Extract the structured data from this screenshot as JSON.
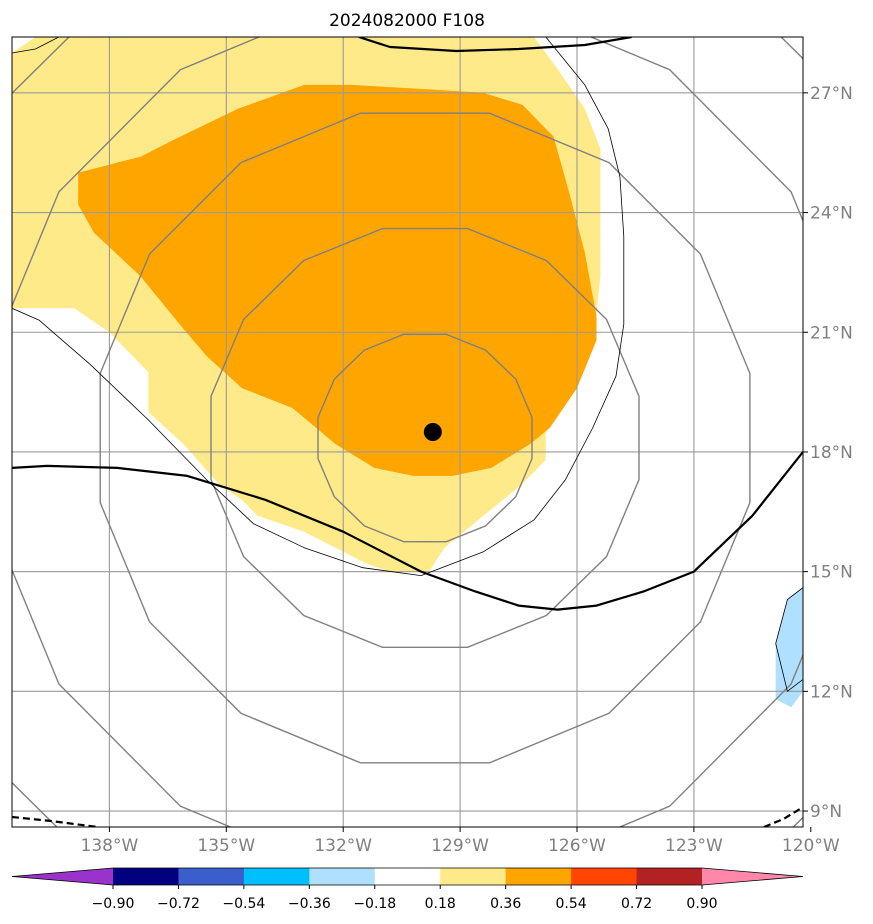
{
  "chart_data": {
    "type": "heatmap",
    "title": "2024082000 F108",
    "map": {
      "lon_range": [
        -140.5,
        -120.2
      ],
      "lat_range": [
        8.6,
        28.4
      ],
      "lon_ticks": [
        -138,
        -135,
        -132,
        -129,
        -126,
        -123,
        -120
      ],
      "lon_tick_labels": [
        "138°W",
        "135°W",
        "132°W",
        "129°W",
        "126°W",
        "123°W",
        "120°W"
      ],
      "lat_ticks": [
        9,
        12,
        15,
        18,
        21,
        24,
        27
      ],
      "lat_tick_labels": [
        "9°N",
        "12°N",
        "15°N",
        "18°N",
        "21°N",
        "24°N",
        "27°N"
      ],
      "grid": true,
      "tick_label_color": "#808080"
    },
    "colorbar": {
      "orientation": "horizontal",
      "location": "bottom",
      "extend": "both",
      "levels": [
        -0.9,
        -0.72,
        -0.54,
        -0.36,
        -0.18,
        0.18,
        0.36,
        0.54,
        0.72,
        0.9
      ],
      "tick_labels": [
        "−0.90",
        "−0.72",
        "−0.54",
        "−0.36",
        "−0.18",
        "0.18",
        "0.36",
        "0.54",
        "0.72",
        "0.90"
      ],
      "colors": [
        "#9933cc",
        "#000080",
        "#3a5fcd",
        "#00bfff",
        "#b0e0ff",
        "#ffffff",
        "#ffea8a",
        "#ffa500",
        "#ff4500",
        "#b22222",
        "#ff88aa"
      ]
    },
    "storm_center": {
      "lon": -129.7,
      "lat": 18.5
    },
    "filled_regions": [
      {
        "level_range": [
          0.18,
          0.36
        ],
        "color": "#ffea8a",
        "polygon": [
          [
            -139.9,
            28.4
          ],
          [
            -127.1,
            28.4
          ],
          [
            -126.5,
            27.6
          ],
          [
            -125.8,
            26.6
          ],
          [
            -125.4,
            25.6
          ],
          [
            -125.4,
            22.4
          ],
          [
            -125.6,
            20.6
          ],
          [
            -126.2,
            19.8
          ],
          [
            -126.8,
            19.0
          ],
          [
            -126.8,
            17.8
          ],
          [
            -127.4,
            17.2
          ],
          [
            -128.4,
            16.4
          ],
          [
            -129.4,
            15.6
          ],
          [
            -129.8,
            15.0
          ],
          [
            -130.8,
            15.0
          ],
          [
            -131.4,
            15.2
          ],
          [
            -132.2,
            15.6
          ],
          [
            -133.0,
            16.0
          ],
          [
            -133.6,
            16.2
          ],
          [
            -134.2,
            16.4
          ],
          [
            -134.6,
            16.8
          ],
          [
            -135.2,
            17.2
          ],
          [
            -136.1,
            18.2
          ],
          [
            -137.0,
            19.0
          ],
          [
            -137.0,
            20.0
          ],
          [
            -138.0,
            21.0
          ],
          [
            -138.9,
            21.6
          ],
          [
            -140.5,
            21.6
          ],
          [
            -140.5,
            28.0
          ]
        ]
      },
      {
        "level_range": [
          0.36,
          0.54
        ],
        "color": "#ffa500",
        "polygon": [
          [
            -137.2,
            25.4
          ],
          [
            -136.4,
            25.8
          ],
          [
            -134.7,
            26.6
          ],
          [
            -133.0,
            27.2
          ],
          [
            -131.8,
            27.2
          ],
          [
            -130.0,
            27.1
          ],
          [
            -128.4,
            27.0
          ],
          [
            -127.4,
            26.7
          ],
          [
            -126.6,
            25.9
          ],
          [
            -126.2,
            24.5
          ],
          [
            -125.8,
            23.0
          ],
          [
            -125.5,
            21.4
          ],
          [
            -125.5,
            20.8
          ],
          [
            -126.0,
            19.6
          ],
          [
            -126.7,
            18.6
          ],
          [
            -127.2,
            18.2
          ],
          [
            -128.2,
            17.6
          ],
          [
            -129.2,
            17.4
          ],
          [
            -130.2,
            17.4
          ],
          [
            -131.2,
            17.6
          ],
          [
            -132.2,
            18.2
          ],
          [
            -133.3,
            19.1
          ],
          [
            -134.6,
            19.6
          ],
          [
            -135.5,
            20.4
          ],
          [
            -136.2,
            21.2
          ],
          [
            -137.2,
            22.4
          ],
          [
            -138.4,
            23.5
          ],
          [
            -138.8,
            24.2
          ],
          [
            -138.8,
            25.0
          ]
        ]
      },
      {
        "level_range": [
          -0.36,
          -0.18
        ],
        "color": "#b0e0ff",
        "polygon": [
          [
            -120.2,
            14.6
          ],
          [
            -120.6,
            14.3
          ],
          [
            -120.9,
            13.2
          ],
          [
            -120.9,
            11.8
          ],
          [
            -120.5,
            11.6
          ],
          [
            -120.2,
            12.0
          ]
        ]
      }
    ],
    "contours": [
      {
        "name": "",
        "style": "gray thin",
        "rings": [
          {
            "center": [
              -129.9,
              18.35
            ],
            "rx": 2.8,
            "ry": 2.65
          },
          {
            "center": [
              -129.9,
              18.35
            ],
            "rx": 5.6,
            "ry": 5.35
          },
          {
            "center": [
              -129.9,
              18.35
            ],
            "rx": 8.5,
            "ry": 8.3
          },
          {
            "center": [
              -129.9,
              18.35
            ],
            "rx": 11.3,
            "ry": 11.1
          },
          {
            "center": [
              -129.9,
              18.35
            ],
            "rx": 14.1,
            "ry": 13.6
          }
        ]
      },
      {
        "name": "",
        "style": "black thin",
        "paths": [
          [
            [
              -140.5,
              21.6
            ],
            [
              -139.8,
              21.3
            ],
            [
              -138.5,
              20.2
            ],
            [
              -137.0,
              18.8
            ],
            [
              -135.5,
              17.3
            ],
            [
              -134.3,
              16.2
            ],
            [
              -133.0,
              15.6
            ],
            [
              -131.5,
              15.1
            ],
            [
              -130.0,
              14.9
            ],
            [
              -128.4,
              15.5
            ],
            [
              -127.1,
              16.3
            ],
            [
              -126.3,
              17.3
            ],
            [
              -125.6,
              18.6
            ],
            [
              -125.0,
              19.9
            ],
            [
              -124.8,
              21.2
            ],
            [
              -124.8,
              23.4
            ],
            [
              -124.9,
              24.9
            ],
            [
              -125.2,
              26.1
            ],
            [
              -125.8,
              27.2
            ],
            [
              -126.8,
              28.4
            ]
          ],
          [
            [
              -140.5,
              28.0
            ],
            [
              -139.9,
              28.1
            ],
            [
              -139.3,
              28.4
            ]
          ],
          [
            [
              -120.2,
              14.6
            ],
            [
              -120.6,
              14.3
            ],
            [
              -120.9,
              13.2
            ],
            [
              -120.6,
              12.0
            ],
            [
              -120.2,
              12.3
            ]
          ]
        ]
      },
      {
        "name": "",
        "style": "black thick",
        "paths": [
          [
            [
              -140.5,
              17.6
            ],
            [
              -139.6,
              17.65
            ],
            [
              -137.8,
              17.6
            ],
            [
              -136.0,
              17.4
            ],
            [
              -134.0,
              16.8
            ],
            [
              -132.0,
              16.0
            ],
            [
              -130.0,
              15.0
            ],
            [
              -128.6,
              14.5
            ],
            [
              -127.5,
              14.15
            ],
            [
              -126.5,
              14.05
            ],
            [
              -125.5,
              14.15
            ],
            [
              -124.3,
              14.5
            ],
            [
              -123.0,
              15.0
            ],
            [
              -121.5,
              16.4
            ],
            [
              -120.2,
              18.0
            ]
          ],
          [
            [
              -131.6,
              28.4
            ],
            [
              -130.8,
              28.15
            ],
            [
              -129.1,
              28.05
            ],
            [
              -127.5,
              28.1
            ],
            [
              -125.8,
              28.2
            ],
            [
              -124.6,
              28.4
            ]
          ]
        ]
      },
      {
        "name": "",
        "style": "black dashed",
        "paths": [
          [
            [
              -140.5,
              8.85
            ],
            [
              -139.5,
              8.75
            ],
            [
              -138.3,
              8.6
            ]
          ],
          [
            [
              -121.2,
              8.6
            ],
            [
              -120.7,
              8.8
            ],
            [
              -120.2,
              9.1
            ]
          ]
        ]
      }
    ]
  }
}
